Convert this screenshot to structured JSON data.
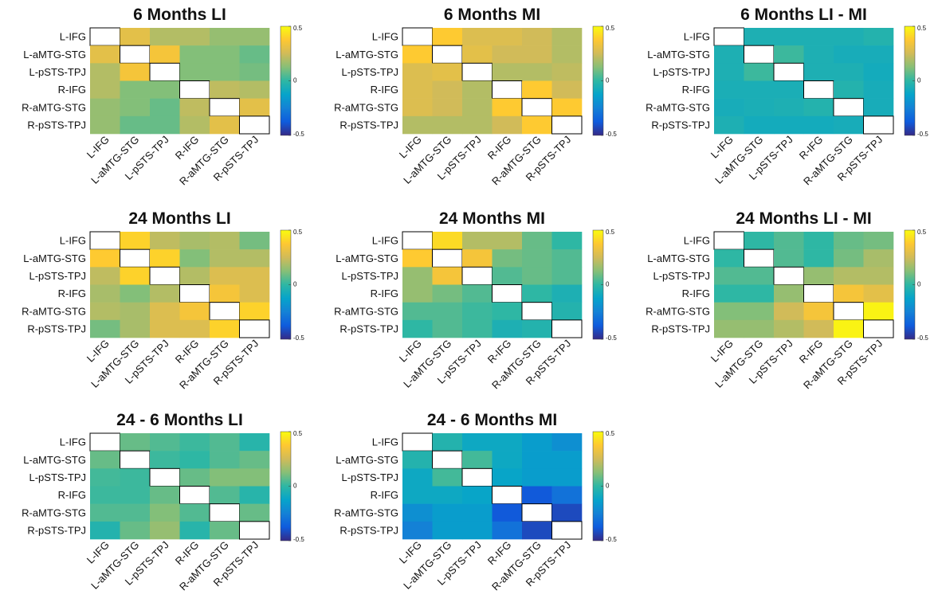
{
  "chart_data": [
    {
      "type": "heatmap",
      "title": "6 Months LI",
      "colormap": "parula",
      "x_categories": [
        "L-IFG",
        "L-aMTG-STG",
        "L-pSTS-TPJ",
        "R-IFG",
        "R-aMTG-STG",
        "R-pSTS-TPJ"
      ],
      "y_categories": [
        "L-IFG",
        "L-aMTG-STG",
        "L-pSTS-TPJ",
        "R-IFG",
        "R-aMTG-STG",
        "R-pSTS-TPJ"
      ],
      "values": [
        [
          null,
          0.3,
          0.2,
          0.2,
          0.15,
          0.15
        ],
        [
          0.3,
          null,
          0.35,
          0.12,
          0.12,
          0.08
        ],
        [
          0.2,
          0.35,
          null,
          0.12,
          0.12,
          0.1
        ],
        [
          0.2,
          0.12,
          0.12,
          null,
          0.22,
          0.2
        ],
        [
          0.15,
          0.12,
          0.08,
          0.22,
          null,
          0.3
        ],
        [
          0.15,
          0.08,
          0.08,
          0.2,
          0.3,
          null
        ]
      ],
      "zlim": [
        -0.5,
        0.5
      ],
      "zticks": [
        -0.5,
        0,
        0.5
      ]
    },
    {
      "type": "heatmap",
      "title": "6 Months MI",
      "colormap": "parula",
      "x_categories": [
        "L-IFG",
        "L-aMTG-STG",
        "L-pSTS-TPJ",
        "R-IFG",
        "R-aMTG-STG",
        "R-pSTS-TPJ"
      ],
      "y_categories": [
        "L-IFG",
        "L-aMTG-STG",
        "L-pSTS-TPJ",
        "R-IFG",
        "R-aMTG-STG",
        "R-pSTS-TPJ"
      ],
      "values": [
        [
          null,
          0.38,
          0.28,
          0.28,
          0.25,
          0.2
        ],
        [
          0.38,
          null,
          0.3,
          0.25,
          0.25,
          0.2
        ],
        [
          0.28,
          0.3,
          null,
          0.2,
          0.2,
          0.22
        ],
        [
          0.28,
          0.25,
          0.2,
          null,
          0.38,
          0.25
        ],
        [
          0.28,
          0.25,
          0.2,
          0.38,
          null,
          0.38
        ],
        [
          0.2,
          0.2,
          0.2,
          0.25,
          0.38,
          null
        ]
      ],
      "zlim": [
        -0.5,
        0.5
      ],
      "zticks": [
        -0.5,
        0,
        0.5
      ]
    },
    {
      "type": "heatmap",
      "title": "6 Months LI - MI",
      "colormap": "parula",
      "x_categories": [
        "L-IFG",
        "L-aMTG-STG",
        "L-pSTS-TPJ",
        "R-IFG",
        "R-aMTG-STG",
        "R-pSTS-TPJ"
      ],
      "y_categories": [
        "L-IFG",
        "L-aMTG-STG",
        "L-pSTS-TPJ",
        "R-IFG",
        "R-aMTG-STG",
        "R-pSTS-TPJ"
      ],
      "values": [
        [
          null,
          -0.05,
          -0.05,
          -0.05,
          -0.05,
          -0.03
        ],
        [
          -0.05,
          null,
          0.02,
          -0.05,
          -0.07,
          -0.07
        ],
        [
          -0.05,
          0.02,
          null,
          -0.05,
          -0.05,
          -0.08
        ],
        [
          -0.06,
          -0.06,
          -0.06,
          null,
          -0.03,
          -0.07
        ],
        [
          -0.07,
          -0.06,
          -0.05,
          -0.03,
          null,
          -0.07
        ],
        [
          -0.05,
          -0.08,
          -0.08,
          -0.08,
          -0.07,
          null
        ]
      ],
      "zlim": [
        -0.5,
        0.5
      ],
      "zticks": [
        -0.5,
        0,
        0.5
      ]
    },
    {
      "type": "heatmap",
      "title": "24 Months LI",
      "colormap": "parula",
      "x_categories": [
        "L-IFG",
        "L-aMTG-STG",
        "L-pSTS-TPJ",
        "R-IFG",
        "R-aMTG-STG",
        "R-pSTS-TPJ"
      ],
      "y_categories": [
        "L-IFG",
        "L-aMTG-STG",
        "L-pSTS-TPJ",
        "R-IFG",
        "R-aMTG-STG",
        "R-pSTS-TPJ"
      ],
      "values": [
        [
          null,
          0.4,
          0.22,
          0.18,
          0.2,
          0.1
        ],
        [
          0.38,
          null,
          0.4,
          0.12,
          0.2,
          0.2
        ],
        [
          0.22,
          0.4,
          null,
          0.2,
          0.28,
          0.28
        ],
        [
          0.18,
          0.12,
          0.2,
          null,
          0.35,
          0.28
        ],
        [
          0.2,
          0.18,
          0.28,
          0.35,
          null,
          0.4
        ],
        [
          0.1,
          0.18,
          0.28,
          0.28,
          0.4,
          null
        ]
      ],
      "zlim": [
        -0.5,
        0.5
      ],
      "zticks": [
        -0.5,
        0,
        0.5
      ]
    },
    {
      "type": "heatmap",
      "title": "24 Months MI",
      "colormap": "parula",
      "x_categories": [
        "L-IFG",
        "L-aMTG-STG",
        "L-pSTS-TPJ",
        "R-IFG",
        "R-aMTG-STG",
        "R-pSTS-TPJ"
      ],
      "y_categories": [
        "L-IFG",
        "L-aMTG-STG",
        "L-pSTS-TPJ",
        "R-IFG",
        "R-aMTG-STG",
        "R-pSTS-TPJ"
      ],
      "values": [
        [
          null,
          0.42,
          0.2,
          0.2,
          0.08,
          0.0
        ],
        [
          0.38,
          null,
          0.35,
          0.1,
          0.08,
          0.05
        ],
        [
          0.15,
          0.35,
          null,
          0.05,
          0.08,
          0.05
        ],
        [
          0.15,
          0.1,
          0.05,
          null,
          0.0,
          -0.05
        ],
        [
          0.05,
          0.05,
          0.02,
          0.0,
          null,
          -0.03
        ],
        [
          0.0,
          0.05,
          0.02,
          -0.05,
          -0.03,
          null
        ]
      ],
      "zlim": [
        -0.5,
        0.5
      ],
      "zticks": [
        -0.5,
        0,
        0.5
      ]
    },
    {
      "type": "heatmap",
      "title": "24 Months LI - MI",
      "colormap": "parula",
      "x_categories": [
        "L-IFG",
        "L-aMTG-STG",
        "L-pSTS-TPJ",
        "R-IFG",
        "R-aMTG-STG",
        "R-pSTS-TPJ"
      ],
      "y_categories": [
        "L-IFG",
        "L-aMTG-STG",
        "L-pSTS-TPJ",
        "R-IFG",
        "R-aMTG-STG",
        "R-pSTS-TPJ"
      ],
      "values": [
        [
          null,
          0.0,
          0.05,
          0.0,
          0.08,
          0.1
        ],
        [
          0.0,
          null,
          0.05,
          0.0,
          0.1,
          0.18
        ],
        [
          0.05,
          0.05,
          null,
          0.15,
          0.2,
          0.2
        ],
        [
          0.0,
          0.0,
          0.15,
          null,
          0.35,
          0.3
        ],
        [
          0.12,
          0.12,
          0.25,
          0.35,
          null,
          0.48
        ],
        [
          0.15,
          0.15,
          0.2,
          0.25,
          0.48,
          null
        ]
      ],
      "zlim": [
        -0.5,
        0.5
      ],
      "zticks": [
        -0.5,
        0,
        0.5
      ]
    },
    {
      "type": "heatmap",
      "title": "24 - 6 Months LI",
      "colormap": "parula",
      "x_categories": [
        "L-IFG",
        "L-aMTG-STG",
        "L-pSTS-TPJ",
        "R-IFG",
        "R-aMTG-STG",
        "R-pSTS-TPJ"
      ],
      "y_categories": [
        "L-IFG",
        "L-aMTG-STG",
        "L-pSTS-TPJ",
        "R-IFG",
        "R-aMTG-STG",
        "R-pSTS-TPJ"
      ],
      "values": [
        [
          null,
          0.08,
          0.05,
          0.02,
          0.05,
          -0.02
        ],
        [
          0.08,
          null,
          0.02,
          0.0,
          0.05,
          0.08
        ],
        [
          0.03,
          0.02,
          null,
          0.08,
          0.12,
          0.12
        ],
        [
          0.02,
          0.02,
          0.08,
          null,
          0.05,
          -0.02
        ],
        [
          0.05,
          0.05,
          0.12,
          0.05,
          null,
          0.08
        ],
        [
          -0.03,
          0.08,
          0.15,
          -0.02,
          0.08,
          null
        ]
      ],
      "zlim": [
        -0.5,
        0.5
      ],
      "zticks": [
        -0.5,
        0,
        0.5
      ]
    },
    {
      "type": "heatmap",
      "title": "24 - 6 Months MI",
      "colormap": "parula",
      "x_categories": [
        "L-IFG",
        "L-aMTG-STG",
        "L-pSTS-TPJ",
        "R-IFG",
        "R-aMTG-STG",
        "R-pSTS-TPJ"
      ],
      "y_categories": [
        "L-IFG",
        "L-aMTG-STG",
        "L-pSTS-TPJ",
        "R-IFG",
        "R-aMTG-STG",
        "R-pSTS-TPJ"
      ],
      "values": [
        [
          null,
          -0.03,
          -0.1,
          -0.1,
          -0.15,
          -0.2
        ],
        [
          -0.03,
          null,
          0.03,
          -0.1,
          -0.15,
          -0.15
        ],
        [
          -0.1,
          0.03,
          null,
          -0.12,
          -0.15,
          -0.15
        ],
        [
          -0.1,
          -0.1,
          -0.12,
          null,
          -0.38,
          -0.3
        ],
        [
          -0.2,
          -0.15,
          -0.15,
          -0.38,
          null,
          -0.42
        ],
        [
          -0.25,
          -0.15,
          -0.15,
          -0.3,
          -0.42,
          null
        ]
      ],
      "zlim": [
        -0.5,
        0.5
      ],
      "zticks": [
        -0.5,
        0,
        0.5
      ]
    }
  ]
}
